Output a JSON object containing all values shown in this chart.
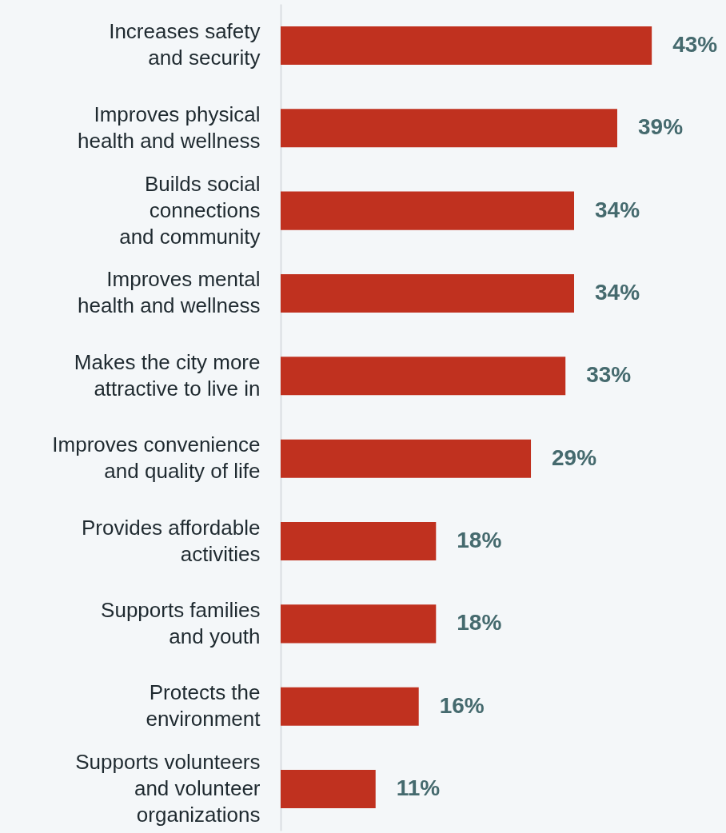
{
  "chart_data": {
    "type": "bar",
    "orientation": "horizontal",
    "data_labels": true,
    "categories": [
      "Increases safety\nand security",
      "Improves physical\nhealth and wellness",
      "Builds social\nconnections\nand community",
      "Improves mental\nhealth and wellness",
      "Makes the city more\nattractive to live in",
      "Improves convenience\nand quality of life",
      "Provides affordable\nactivities",
      "Supports families\nand youth",
      "Protects the\nenvironment",
      "Supports volunteers\nand volunteer\norganizations"
    ],
    "values": [
      43,
      39,
      34,
      34,
      33,
      29,
      18,
      18,
      16,
      11
    ],
    "value_labels": [
      "43%",
      "39%",
      "34%",
      "34%",
      "33%",
      "29%",
      "18%",
      "18%",
      "16%",
      "11%"
    ],
    "color": "#c0311f"
  }
}
